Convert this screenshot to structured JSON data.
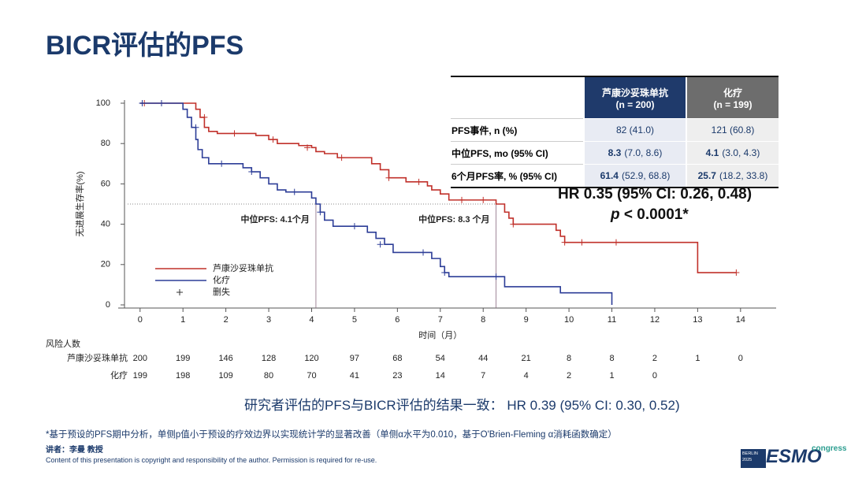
{
  "slide": {
    "title": "BICR评估的PFS",
    "table": {
      "headers": [
        [
          "芦康沙妥珠单抗",
          "(n = 200)"
        ],
        [
          "化疗",
          "(n = 199)"
        ]
      ],
      "rows": [
        {
          "label": "PFS事件, n (%)",
          "cells": [
            {
              "rest": "82 (41.0)"
            },
            {
              "rest": "121 (60.8)"
            }
          ]
        },
        {
          "label": "中位PFS, mo (95% CI)",
          "cells": [
            {
              "bold": "8.3",
              "rest": "(7.0, 8.6)"
            },
            {
              "bold": "4.1",
              "rest": "(3.0, 4.3)"
            }
          ]
        },
        {
          "label": "6个月PFS率, %  (95% CI)",
          "cells": [
            {
              "bold": "61.4",
              "rest": "(52.9, 68.8)"
            },
            {
              "bold": "25.7",
              "rest": "(18.2, 33.8)"
            }
          ]
        }
      ]
    },
    "hr": "HR 0.35 (95% CI: 0.26, 0.48)",
    "p_symbol": "p",
    "p_rest": " < 0.0001*",
    "risk": {
      "title": "风险人数",
      "rows": [
        {
          "label": "芦康沙妥珠单抗",
          "values": [
            200,
            199,
            146,
            128,
            120,
            97,
            68,
            54,
            44,
            21,
            8,
            8,
            2,
            1,
            0
          ]
        },
        {
          "label": "化疗",
          "values": [
            199,
            198,
            109,
            80,
            70,
            41,
            23,
            14,
            7,
            4,
            2,
            1,
            0
          ]
        }
      ]
    },
    "summary": "研究者评估的PFS与BICR评估的结果一致：  HR 0.39 (95% CI: 0.30, 0.52)",
    "footnote": "*基于预设的PFS期中分析，单侧p值小于预设的疗效边界以实现统计学的显著改善（单侧α水平为0.010，基于O'Brien-Fleming α消耗函数确定）",
    "speaker": "讲者：李曼 教授",
    "copyright": "Content of this presentation is copyright and responsibility of the author. Permission is required for re-use.",
    "logo": {
      "city": "BERLIN",
      "year": "2025",
      "name": "ESMO",
      "tag": "congress"
    }
  },
  "chart_data": {
    "type": "line",
    "step": true,
    "xlabel": "时间（月）",
    "ylabel": "无进展生存率(%)",
    "xlim": [
      -0.51,
      14.83
    ],
    "ylim": [
      0,
      100
    ],
    "xticks": [
      0,
      1,
      2,
      3,
      4,
      5,
      6,
      7,
      8,
      9,
      10,
      11,
      12,
      13,
      14
    ],
    "yticks": [
      0,
      20,
      40,
      60,
      80,
      100
    ],
    "censor_label": "删失",
    "censor_color": "#333333",
    "median_level": 50,
    "medians": [
      4.1,
      8.3
    ],
    "annotations": [
      "中位PFS: 4.1个月",
      "中位PFS: 8.3 个月"
    ],
    "series": [
      {
        "name": "芦康沙妥珠单抗",
        "color": "#c0302a",
        "x": [
          0,
          1.3,
          1.4,
          1.5,
          1.6,
          1.8,
          2.0,
          2.7,
          3.0,
          3.2,
          3.7,
          4.0,
          4.1,
          4.3,
          4.6,
          5.4,
          5.6,
          5.8,
          6.2,
          6.7,
          6.8,
          7.0,
          7.2,
          8.3,
          8.5,
          8.6,
          8.7,
          9.7,
          9.8,
          9.9,
          13.0,
          13.9
        ],
        "values": [
          100,
          97,
          93,
          88,
          86,
          85,
          85,
          84,
          82,
          80,
          79,
          78,
          76,
          75,
          73,
          70,
          67,
          63,
          61,
          59,
          57,
          55,
          52,
          50,
          46,
          43,
          40,
          37,
          34,
          31,
          16,
          16
        ],
        "censored": {
          "x": [
            0.1,
            0.5,
            1.5,
            2.2,
            3.1,
            3.9,
            4.7,
            5.8,
            6.5,
            7.5,
            8.0,
            8.7,
            9.9,
            10.3,
            11.1,
            13.9
          ],
          "y": [
            100,
            100,
            93,
            85,
            82,
            78,
            73,
            63,
            61,
            52,
            52,
            40,
            31,
            31,
            31,
            16
          ]
        }
      },
      {
        "name": "化疗",
        "color": "#2c3d97",
        "x": [
          0,
          1.0,
          1.1,
          1.2,
          1.3,
          1.35,
          1.45,
          1.6,
          1.7,
          2.4,
          2.6,
          2.8,
          3.0,
          3.2,
          3.4,
          4.0,
          4.1,
          4.2,
          4.3,
          4.5,
          5.3,
          5.5,
          5.7,
          5.9,
          6.8,
          7.0,
          7.1,
          7.2,
          8.5,
          9.8,
          11.0,
          11.0
        ],
        "values": [
          100,
          97,
          93,
          88,
          82,
          77,
          73,
          70,
          70,
          68,
          66,
          63,
          60,
          57,
          56,
          53,
          50,
          46,
          42,
          39,
          36,
          33,
          30,
          26,
          23,
          19,
          16,
          14,
          9,
          6,
          6,
          0
        ],
        "censored": {
          "x": [
            0.05,
            0.5,
            1.3,
            1.9,
            2.6,
            3.6,
            4.2,
            5.0,
            5.6,
            6.6,
            7.1,
            8.3
          ],
          "y": [
            100,
            100,
            88,
            70,
            66,
            56,
            46,
            39,
            30,
            26,
            16,
            14
          ]
        }
      }
    ]
  }
}
